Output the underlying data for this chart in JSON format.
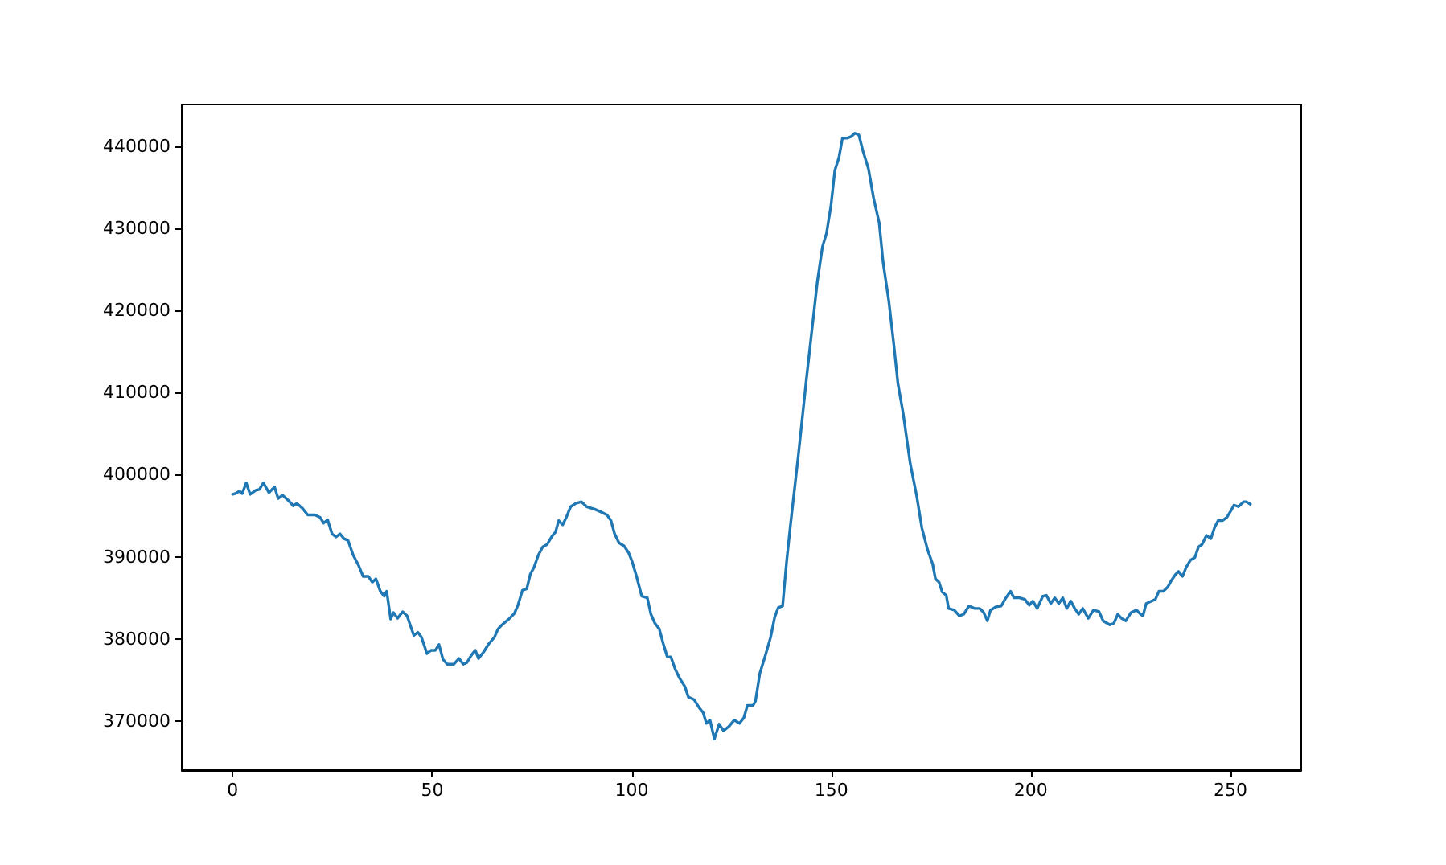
{
  "chart_data": {
    "type": "line",
    "color": "#1f77b4",
    "x": [
      0,
      0.7,
      1.7,
      2.4,
      3.4,
      4.4,
      5.8,
      6.7,
      7.7,
      9.1,
      10.5,
      11.4,
      12.5,
      14.1,
      15.2,
      16.1,
      17.5,
      18.8,
      20.6,
      21.9,
      22.8,
      23.8,
      24.9,
      25.9,
      26.9,
      27.9,
      28.9,
      30.2,
      31.6,
      32.7,
      34,
      35,
      35.9,
      37,
      38,
      38.6,
      39.6,
      40.3,
      41.3,
      42.6,
      43.7,
      45.4,
      46.4,
      47.3,
      48.7,
      49.7,
      50.8,
      51.7,
      52.7,
      53.8,
      55.4,
      56.7,
      57.8,
      58.7,
      59.8,
      60.8,
      61.6,
      62.9,
      64.2,
      65.6,
      66.5,
      67.5,
      69.2,
      70.6,
      71.5,
      72.6,
      73.7,
      74.6,
      75.5,
      76.6,
      77.7,
      78.8,
      80,
      80.9,
      81.7,
      82.7,
      83.6,
      84.7,
      86,
      87.4,
      88.7,
      90.7,
      92.1,
      93.8,
      94.8,
      95.7,
      96.8,
      98.1,
      99.2,
      100.1,
      101.2,
      102.5,
      103.9,
      104.8,
      105.8,
      106.9,
      107.9,
      108.9,
      109.8,
      110.9,
      112,
      113.3,
      114.2,
      115.6,
      116.9,
      117.9,
      118.7,
      119.6,
      120.7,
      121.9,
      123,
      124.3,
      125.7,
      127,
      128.1,
      129,
      130.4,
      131,
      132.1,
      133.5,
      134.8,
      135.8,
      136.7,
      137.8,
      138.8,
      139.8,
      141.8,
      143.8,
      145.6,
      146.5,
      147.8,
      148.8,
      149.9,
      150.9,
      151.9,
      152.8,
      153.9,
      155,
      155.9,
      156.9,
      157.9,
      159.3,
      160.6,
      162,
      163,
      164.4,
      165.7,
      166.7,
      168,
      169.8,
      171.4,
      172.7,
      174.1,
      175.4,
      176.1,
      177,
      177.8,
      178.8,
      179.4,
      180.8,
      182.1,
      183.2,
      184.5,
      185.9,
      187.2,
      188.2,
      189.1,
      189.9,
      191.3,
      192.6,
      193.5,
      194.9,
      195.8,
      197.2,
      198.5,
      199.6,
      200.5,
      201.6,
      203,
      203.9,
      205,
      206,
      207,
      208,
      209,
      210,
      211,
      212,
      213,
      214.4,
      215.7,
      217.1,
      218.1,
      219.8,
      220.8,
      221.8,
      222.7,
      223.8,
      225.1,
      226.5,
      227.5,
      228.1,
      228.9,
      229.8,
      231.2,
      232.1,
      233.2,
      234.3,
      235.2,
      236.2,
      237,
      238,
      238.9,
      240,
      241.1,
      242,
      242.9,
      244,
      245.1,
      246,
      246.9,
      248,
      249.1,
      250,
      250.9,
      252,
      253.3,
      254,
      255
    ],
    "values": [
      397600,
      397700,
      398000,
      397700,
      399000,
      397600,
      398100,
      398200,
      399000,
      397800,
      398500,
      397100,
      397500,
      396800,
      396200,
      396500,
      395900,
      395100,
      395100,
      394800,
      394100,
      394500,
      392800,
      392400,
      392800,
      392200,
      392000,
      390200,
      388900,
      387600,
      387600,
      386900,
      387300,
      385800,
      385200,
      385800,
      382400,
      383200,
      382500,
      383300,
      382800,
      380400,
      380800,
      380200,
      378200,
      378600,
      378600,
      379300,
      377500,
      376900,
      376900,
      377600,
      376900,
      377100,
      378000,
      378600,
      377600,
      378400,
      379400,
      380200,
      381200,
      381700,
      382400,
      383100,
      384100,
      385900,
      386100,
      387900,
      388700,
      390200,
      391200,
      391500,
      392500,
      393000,
      394400,
      393900,
      394800,
      396100,
      396500,
      396700,
      396100,
      395800,
      395500,
      395100,
      394400,
      392800,
      391700,
      391300,
      390500,
      389400,
      387600,
      385200,
      385000,
      383000,
      381900,
      381200,
      379400,
      377800,
      377800,
      376300,
      375200,
      374200,
      372900,
      372600,
      371600,
      371000,
      369700,
      370100,
      367800,
      369600,
      368800,
      369300,
      370100,
      369700,
      370400,
      371900,
      371900,
      372400,
      375800,
      378000,
      380200,
      382600,
      383800,
      384000,
      389400,
      394000,
      402600,
      411800,
      419600,
      423500,
      427800,
      429400,
      432700,
      437100,
      438600,
      441000,
      441000,
      441200,
      441600,
      441400,
      439500,
      437300,
      433700,
      430700,
      425800,
      421200,
      415700,
      411100,
      407500,
      401300,
      397400,
      393500,
      390900,
      389100,
      387300,
      386900,
      385700,
      385300,
      383700,
      383500,
      382800,
      383000,
      384000,
      383700,
      383700,
      383200,
      382200,
      383500,
      383900,
      384000,
      384800,
      385800,
      385000,
      385000,
      384800,
      384100,
      384600,
      383700,
      385200,
      385300,
      384300,
      385000,
      384300,
      385000,
      383700,
      384600,
      383700,
      383000,
      383700,
      382500,
      383500,
      383300,
      382200,
      381700,
      381900,
      383000,
      382500,
      382200,
      383200,
      383500,
      383000,
      382800,
      384300,
      384500,
      384800,
      385800,
      385800,
      386300,
      387100,
      387800,
      388200,
      387600,
      388700,
      389600,
      389900,
      391200,
      391500,
      392600,
      392200,
      393500,
      394400,
      394400,
      394800,
      395500,
      396300,
      396100,
      396700,
      396700,
      396400
    ],
    "xlim": [
      -12.75,
      267.75
    ],
    "xticks": [
      0,
      50,
      100,
      150,
      200,
      250
    ],
    "ylim": [
      364000,
      445100
    ],
    "yticks": [
      370000,
      380000,
      390000,
      400000,
      410000,
      420000,
      430000,
      440000
    ]
  }
}
